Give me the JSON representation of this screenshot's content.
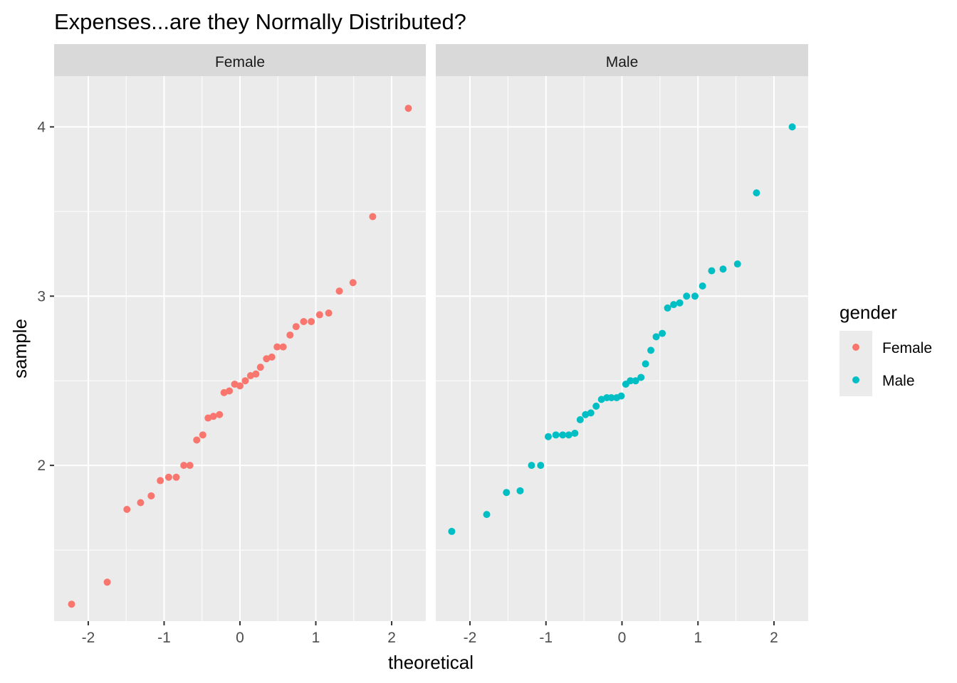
{
  "chart_data": {
    "type": "scatter",
    "title": "Expenses...are they Normally Distributed?",
    "xlabel": "theoretical",
    "ylabel": "sample",
    "xlim": [
      -2.45,
      2.45
    ],
    "ylim": [
      1.08,
      4.3
    ],
    "x_ticks": [
      -2,
      -1,
      0,
      1,
      2
    ],
    "x_tick_labels": [
      "-2",
      "-1",
      "0",
      "1",
      "2"
    ],
    "y_ticks": [
      2,
      3,
      4
    ],
    "y_tick_labels": [
      "2",
      "3",
      "4"
    ],
    "grid": true,
    "legend": {
      "title": "gender",
      "position": "right",
      "entries": [
        {
          "label": "Female",
          "color": "#F8766D"
        },
        {
          "label": "Male",
          "color": "#00BFC4"
        }
      ]
    },
    "facets": [
      {
        "label": "Female",
        "color": "#F8766D",
        "points": [
          [
            -2.22,
            1.18
          ],
          [
            -1.75,
            1.31
          ],
          [
            -1.49,
            1.74
          ],
          [
            -1.31,
            1.78
          ],
          [
            -1.17,
            1.82
          ],
          [
            -1.05,
            1.91
          ],
          [
            -0.94,
            1.93
          ],
          [
            -0.84,
            1.93
          ],
          [
            -0.74,
            2.0
          ],
          [
            -0.66,
            2.0
          ],
          [
            -0.57,
            2.15
          ],
          [
            -0.49,
            2.18
          ],
          [
            -0.42,
            2.28
          ],
          [
            -0.35,
            2.29
          ],
          [
            -0.27,
            2.3
          ],
          [
            -0.21,
            2.43
          ],
          [
            -0.14,
            2.44
          ],
          [
            -0.07,
            2.48
          ],
          [
            0.0,
            2.47
          ],
          [
            0.07,
            2.5
          ],
          [
            0.14,
            2.53
          ],
          [
            0.21,
            2.54
          ],
          [
            0.27,
            2.58
          ],
          [
            0.35,
            2.63
          ],
          [
            0.42,
            2.64
          ],
          [
            0.49,
            2.7
          ],
          [
            0.57,
            2.7
          ],
          [
            0.66,
            2.77
          ],
          [
            0.74,
            2.82
          ],
          [
            0.84,
            2.85
          ],
          [
            0.94,
            2.85
          ],
          [
            1.05,
            2.89
          ],
          [
            1.17,
            2.9
          ],
          [
            1.31,
            3.03
          ],
          [
            1.49,
            3.08
          ],
          [
            1.75,
            3.47
          ],
          [
            2.22,
            4.11
          ]
        ]
      },
      {
        "label": "Male",
        "color": "#00BFC4",
        "points": [
          [
            -2.24,
            1.61
          ],
          [
            -1.78,
            1.71
          ],
          [
            -1.52,
            1.84
          ],
          [
            -1.34,
            1.85
          ],
          [
            -1.19,
            2.0
          ],
          [
            -1.07,
            2.0
          ],
          [
            -0.97,
            2.17
          ],
          [
            -0.87,
            2.18
          ],
          [
            -0.78,
            2.18
          ],
          [
            -0.7,
            2.18
          ],
          [
            -0.62,
            2.19
          ],
          [
            -0.55,
            2.27
          ],
          [
            -0.48,
            2.3
          ],
          [
            -0.41,
            2.31
          ],
          [
            -0.34,
            2.35
          ],
          [
            -0.27,
            2.39
          ],
          [
            -0.2,
            2.4
          ],
          [
            -0.14,
            2.4
          ],
          [
            -0.07,
            2.4
          ],
          [
            -0.01,
            2.41
          ],
          [
            0.05,
            2.48
          ],
          [
            0.11,
            2.5
          ],
          [
            0.18,
            2.5
          ],
          [
            0.25,
            2.52
          ],
          [
            0.31,
            2.6
          ],
          [
            0.38,
            2.68
          ],
          [
            0.45,
            2.76
          ],
          [
            0.53,
            2.78
          ],
          [
            0.6,
            2.93
          ],
          [
            0.68,
            2.95
          ],
          [
            0.76,
            2.96
          ],
          [
            0.85,
            3.0
          ],
          [
            0.96,
            3.0
          ],
          [
            1.06,
            3.06
          ],
          [
            1.18,
            3.15
          ],
          [
            1.33,
            3.16
          ],
          [
            1.52,
            3.19
          ],
          [
            1.77,
            3.61
          ],
          [
            2.24,
            4.0
          ]
        ]
      }
    ]
  }
}
